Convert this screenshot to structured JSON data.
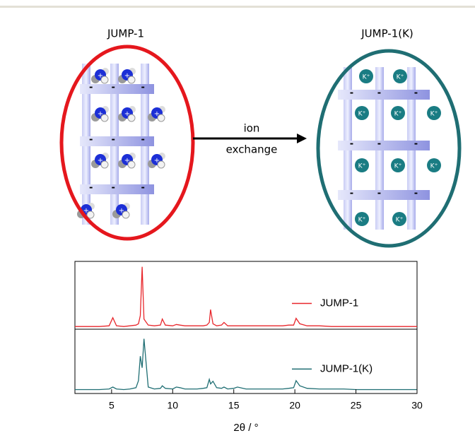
{
  "diagram": {
    "left_label": "JUMP-1",
    "right_label": "JUMP-1(K)",
    "arrow_label_top": "ion",
    "arrow_label_bottom": "exchange",
    "minus": "-",
    "plus": "+",
    "k_ion": "K⁺"
  },
  "chart_data": [
    {
      "type": "line",
      "x": [
        2,
        3,
        4,
        4.8,
        5.1,
        5.4,
        6,
        6.5,
        7,
        7.2,
        7.35,
        7.5,
        7.65,
        8,
        8.5,
        9,
        9.15,
        9.4,
        10,
        10.3,
        10.6,
        11,
        11.5,
        12,
        12.5,
        12.8,
        13,
        13.1,
        13.3,
        13.6,
        14,
        14.2,
        14.5,
        15,
        15.3,
        16,
        17,
        18,
        19,
        19.5,
        19.9,
        20.1,
        20.4,
        21,
        22,
        23,
        24,
        25,
        26,
        27,
        28,
        29,
        30
      ],
      "series": [
        {
          "name": "JUMP-1",
          "color": "#e8262b",
          "values": [
            4,
            4,
            4,
            5,
            17,
            5,
            4,
            5,
            6,
            8,
            20,
            92,
            15,
            6,
            5,
            6,
            15,
            6,
            5,
            7,
            6,
            5,
            5,
            5,
            5,
            6,
            10,
            29,
            8,
            5,
            6,
            10,
            5,
            5,
            5,
            5,
            5,
            5,
            5,
            6,
            6,
            16,
            8,
            5,
            5,
            4,
            4,
            4,
            4,
            4,
            4,
            4,
            4
          ]
        }
      ],
      "xlim": [
        2,
        30
      ],
      "ylim": [
        0,
        100
      ]
    },
    {
      "type": "line",
      "x": [
        2,
        3,
        4,
        4.8,
        5.1,
        5.4,
        6,
        6.5,
        7,
        7.2,
        7.35,
        7.5,
        7.65,
        8,
        8.5,
        9,
        9.15,
        9.4,
        10,
        10.3,
        10.6,
        11,
        11.5,
        12,
        12.5,
        12.8,
        13,
        13.1,
        13.3,
        13.6,
        14,
        14.2,
        14.5,
        15,
        15.3,
        16,
        17,
        18,
        19,
        19.5,
        19.9,
        20.1,
        20.4,
        21,
        22,
        23,
        24,
        25,
        26,
        27,
        28,
        29,
        30
      ],
      "series": [
        {
          "name": "JUMP-1(K)",
          "color": "#1f6e73",
          "values": [
            6,
            6,
            6,
            7,
            10,
            7,
            6,
            7,
            9,
            20,
            58,
            40,
            85,
            10,
            7,
            8,
            12,
            8,
            7,
            10,
            9,
            7,
            7,
            7,
            8,
            9,
            22,
            15,
            19,
            9,
            8,
            10,
            7,
            8,
            10,
            7,
            7,
            7,
            7,
            8,
            9,
            20,
            12,
            8,
            7,
            7,
            7,
            6,
            6,
            6,
            6,
            6,
            6
          ]
        }
      ],
      "xlim": [
        2,
        30
      ],
      "ylim": [
        0,
        100
      ],
      "xticks": [
        5,
        10,
        15,
        20,
        25,
        30
      ],
      "xlabel": "2θ / °"
    }
  ]
}
